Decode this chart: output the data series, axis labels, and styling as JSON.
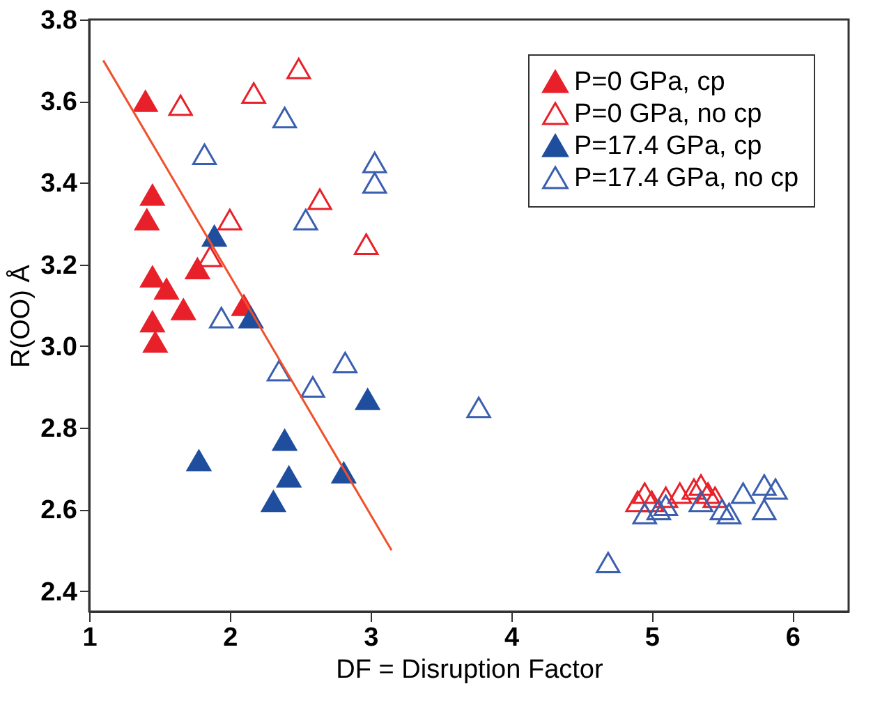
{
  "chart_data": {
    "type": "scatter",
    "xlabel": "DF = Disruption Factor",
    "ylabel": "R(OO) Å",
    "xlim": [
      1,
      6.4
    ],
    "ylim": [
      2.35,
      3.8
    ],
    "xticks": [
      {
        "value": 1,
        "label": "1"
      },
      {
        "value": 2,
        "label": "2"
      },
      {
        "value": 3,
        "label": "3"
      },
      {
        "value": 4,
        "label": "4"
      },
      {
        "value": 5,
        "label": "5"
      },
      {
        "value": 6,
        "label": "6"
      }
    ],
    "yticks": [
      {
        "value": 2.4,
        "label": "2.4"
      },
      {
        "value": 2.6,
        "label": "2.6"
      },
      {
        "value": 2.8,
        "label": "2.8"
      },
      {
        "value": 3.0,
        "label": "3.0"
      },
      {
        "value": 3.2,
        "label": "3.2"
      },
      {
        "value": 3.4,
        "label": "3.4"
      },
      {
        "value": 3.6,
        "label": "3.6"
      },
      {
        "value": 3.8,
        "label": "3.8"
      }
    ],
    "grid": false,
    "legend": "top right",
    "marker": "triangle",
    "series": [
      {
        "name": "P=0 GPa, cp",
        "color": "#e8202a",
        "x": [
          1.4,
          1.45,
          1.41,
          1.45,
          1.55,
          1.67,
          1.77,
          1.45,
          1.47,
          2.1
        ],
        "values": [
          3.6,
          3.37,
          3.31,
          3.17,
          3.14,
          3.09,
          3.19,
          3.06,
          3.01,
          3.1
        ]
      },
      {
        "name": "P=0 GPa, no cp",
        "color": "#e8202a",
        "x": [
          1.65,
          2.17,
          2.49,
          2.0,
          1.86,
          2.64,
          2.97,
          4.9,
          4.95,
          5.0,
          5.1,
          5.2,
          5.3,
          5.35,
          5.4,
          5.45
        ],
        "values": [
          3.59,
          3.62,
          3.68,
          3.31,
          3.22,
          3.36,
          3.25,
          2.62,
          2.64,
          2.62,
          2.63,
          2.64,
          2.65,
          2.66,
          2.64,
          2.63
        ]
      },
      {
        "name": "P=17.4 GPa, cp",
        "color": "#1f4e9e",
        "x": [
          1.89,
          2.15,
          1.78,
          2.39,
          2.42,
          2.31,
          2.81,
          2.98
        ],
        "values": [
          3.27,
          3.07,
          2.72,
          2.77,
          2.68,
          2.62,
          2.69,
          2.87
        ]
      },
      {
        "name": "P=17.4 GPa, no cp",
        "color": "#3a5fb0",
        "x": [
          1.82,
          2.39,
          2.54,
          3.03,
          3.03,
          1.94,
          2.35,
          2.59,
          2.82,
          3.77,
          4.69,
          4.95,
          5.05,
          5.1,
          5.35,
          5.5,
          5.55,
          5.65,
          5.8,
          5.88,
          5.8
        ],
        "values": [
          3.47,
          3.56,
          3.31,
          3.45,
          3.4,
          3.07,
          2.94,
          2.9,
          2.96,
          2.85,
          2.47,
          2.59,
          2.6,
          2.61,
          2.62,
          2.6,
          2.59,
          2.64,
          2.66,
          2.65,
          2.6
        ]
      },
      {
        "type": "line",
        "marker": "none",
        "color": "#f0502a",
        "x": [
          1.1,
          3.15
        ],
        "values": [
          3.7,
          2.5
        ]
      }
    ]
  }
}
